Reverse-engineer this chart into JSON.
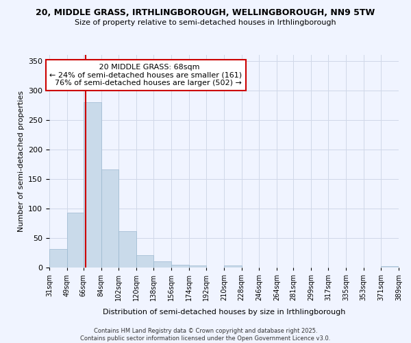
{
  "title_line1": "20, MIDDLE GRASS, IRTHLINGBOROUGH, WELLINGBOROUGH, NN9 5TW",
  "title_line2": "Size of property relative to semi-detached houses in Irthlingborough",
  "xlabel": "Distribution of semi-detached houses by size in Irthlingborough",
  "ylabel": "Number of semi-detached properties",
  "property_size": 68,
  "property_label": "20 MIDDLE GRASS: 68sqm",
  "pct_smaller": 24,
  "pct_larger": 76,
  "count_smaller": 161,
  "count_larger": 502,
  "bin_edges": [
    31,
    49,
    66,
    84,
    102,
    120,
    138,
    156,
    174,
    192,
    210,
    228,
    246,
    264,
    281,
    299,
    317,
    335,
    353,
    371,
    389
  ],
  "bar_heights": [
    31,
    93,
    280,
    166,
    61,
    21,
    10,
    5,
    4,
    0,
    3,
    0,
    0,
    0,
    0,
    0,
    0,
    0,
    0,
    2
  ],
  "bar_color": "#c9daea",
  "bar_edge_color": "#9ab8d0",
  "property_line_color": "#cc0000",
  "annotation_box_color": "#cc0000",
  "background_color": "#f0f4ff",
  "grid_color": "#d0d8e8",
  "footer_text": "Contains HM Land Registry data © Crown copyright and database right 2025.\nContains public sector information licensed under the Open Government Licence v3.0.",
  "tick_labels": [
    "31sqm",
    "49sqm",
    "66sqm",
    "84sqm",
    "102sqm",
    "120sqm",
    "138sqm",
    "156sqm",
    "174sqm",
    "192sqm",
    "210sqm",
    "228sqm",
    "246sqm",
    "264sqm",
    "281sqm",
    "299sqm",
    "317sqm",
    "335sqm",
    "353sqm",
    "371sqm",
    "389sqm"
  ],
  "ylim": [
    0,
    360
  ],
  "yticks": [
    0,
    50,
    100,
    150,
    200,
    250,
    300,
    350
  ]
}
